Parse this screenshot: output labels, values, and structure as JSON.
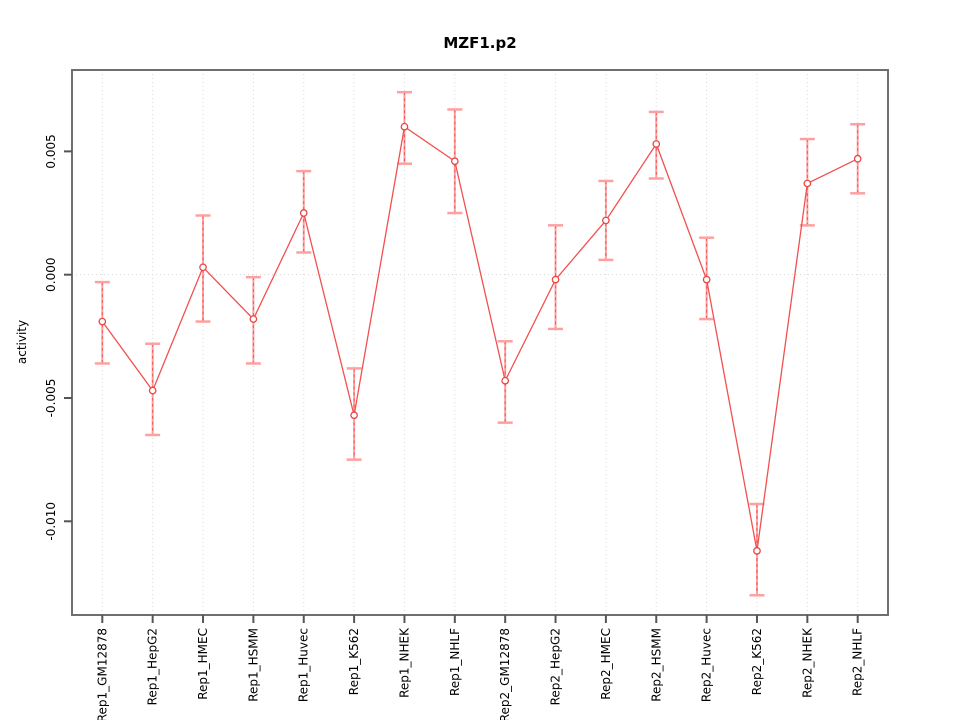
{
  "chart_data": {
    "type": "line",
    "title": "MZF1.p2",
    "ylabel": "activity",
    "xlabel": "",
    "categories": [
      "Rep1_GM12878",
      "Rep1_HepG2",
      "Rep1_HMEC",
      "Rep1_HSMM",
      "Rep1_Huvec",
      "Rep1_K562",
      "Rep1_NHEK",
      "Rep1_NHLF",
      "Rep2_GM12878",
      "Rep2_HepG2",
      "Rep2_HMEC",
      "Rep2_HSMM",
      "Rep2_Huvec",
      "Rep2_K562",
      "Rep2_NHEK",
      "Rep2_NHLF"
    ],
    "series": [
      {
        "name": "activity",
        "values": [
          -0.0019,
          -0.0047,
          0.0003,
          -0.0018,
          0.0025,
          -0.0057,
          0.006,
          0.0046,
          -0.0043,
          -0.0002,
          0.0022,
          0.0053,
          -0.0002,
          -0.0112,
          0.0037,
          0.0047
        ]
      }
    ],
    "error_low": [
      -0.0036,
      -0.0065,
      -0.0019,
      -0.0036,
      0.0009,
      -0.0075,
      0.0045,
      0.0025,
      -0.006,
      -0.0022,
      0.0006,
      0.0039,
      -0.0018,
      -0.013,
      0.002,
      0.0033
    ],
    "error_high": [
      -0.0003,
      -0.0028,
      0.0024,
      -0.0001,
      0.0042,
      -0.0038,
      0.0074,
      0.0067,
      -0.0027,
      0.002,
      0.0038,
      0.0066,
      0.0015,
      -0.0093,
      0.0055,
      0.0061
    ],
    "yticks": {
      "values": [
        0.005,
        0.0,
        -0.005,
        -0.01
      ],
      "labels": [
        "0.005",
        "0.000",
        "-0.005",
        "-0.010"
      ]
    },
    "ylim": [
      -0.0138,
      0.0083
    ],
    "grid": {
      "vertical": "dotted line at each category",
      "zero_line": "dotted horizontal line at 0.000"
    },
    "legend": "none",
    "colors": {
      "line": "#f25050",
      "marker": "#e94545",
      "marker_fill": "#ffffff",
      "error_bar": "#ffa0a0",
      "error_dash": "#ee5555",
      "grid": "#d8d8d8",
      "frame": "#6f6f6f",
      "tick": "#555555",
      "text": "#000000",
      "background": "#ffffff"
    }
  }
}
